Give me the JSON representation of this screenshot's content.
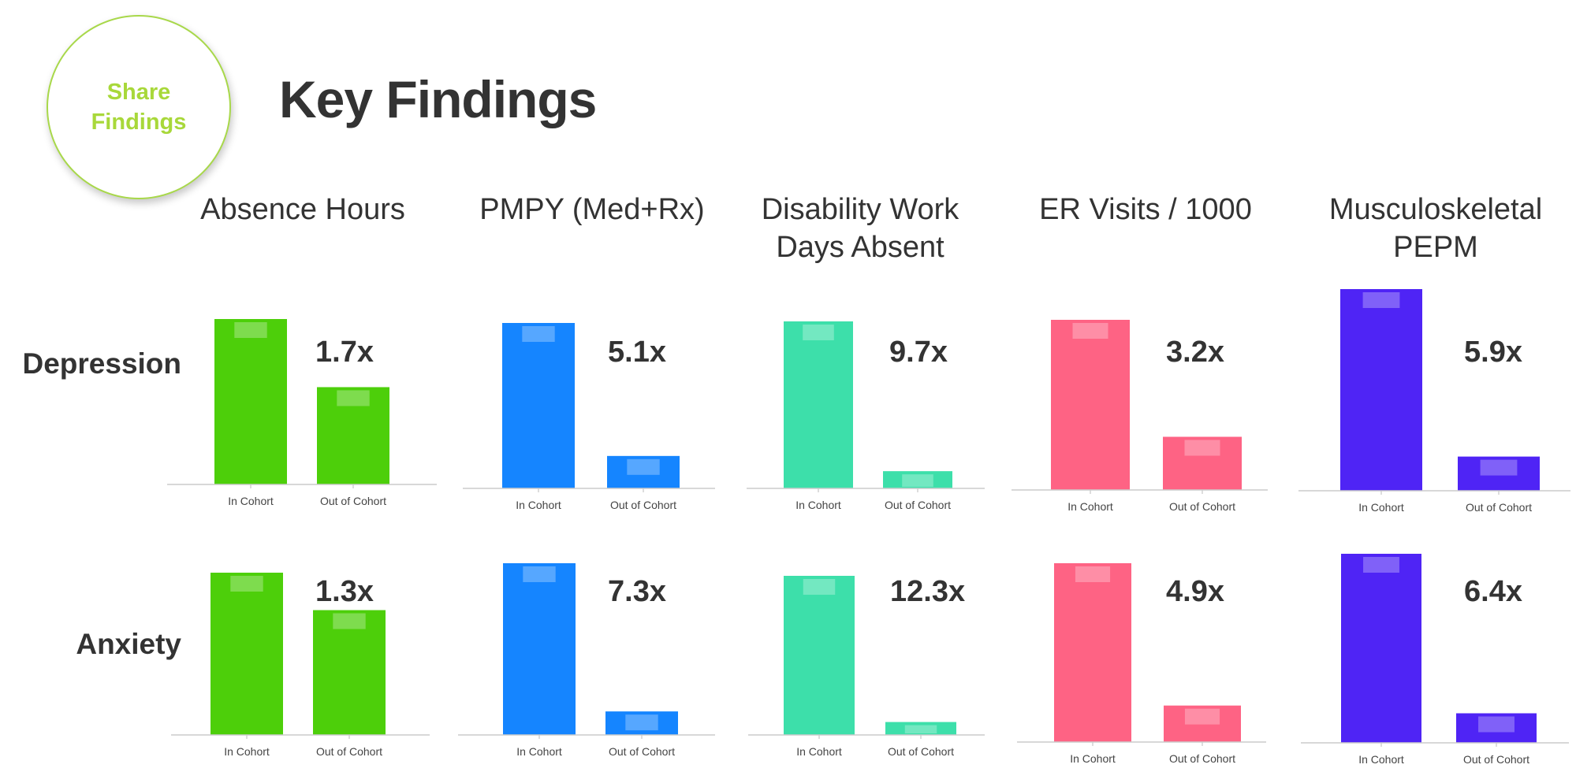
{
  "badge": {
    "text": "Share Findings"
  },
  "title": "Key Findings",
  "columns": [
    {
      "title": "Absence Hours",
      "color": "#4dcf0a"
    },
    {
      "title": "PMPY (Med+Rx)",
      "color": "#1585ff"
    },
    {
      "title": "Disability Work Days Absent",
      "color": "#3ddfaa"
    },
    {
      "title": "ER Visits / 1000",
      "color": "#fe6384"
    },
    {
      "title": "Musculoskeletal PEPM",
      "color": "#4f24f5"
    }
  ],
  "rows": [
    {
      "label": "Depression"
    },
    {
      "label": "Anxiety"
    }
  ],
  "chart_data": [
    {
      "type": "bar",
      "row": "Depression",
      "metric": "Absence Hours",
      "categories": [
        "In Cohort",
        "Out of Cohort"
      ],
      "values": [
        1.7,
        1.0
      ],
      "multiplier": "1.7x"
    },
    {
      "type": "bar",
      "row": "Depression",
      "metric": "PMPY (Med+Rx)",
      "categories": [
        "In Cohort",
        "Out of Cohort"
      ],
      "values": [
        5.1,
        1.0
      ],
      "multiplier": "5.1x"
    },
    {
      "type": "bar",
      "row": "Depression",
      "metric": "Disability Work Days Absent",
      "categories": [
        "In Cohort",
        "Out of Cohort"
      ],
      "values": [
        9.7,
        1.0
      ],
      "multiplier": "9.7x"
    },
    {
      "type": "bar",
      "row": "Depression",
      "metric": "ER Visits / 1000",
      "categories": [
        "In Cohort",
        "Out of Cohort"
      ],
      "values": [
        3.2,
        1.0
      ],
      "multiplier": "3.2x"
    },
    {
      "type": "bar",
      "row": "Depression",
      "metric": "Musculoskeletal PEPM",
      "categories": [
        "In Cohort",
        "Out of Cohort"
      ],
      "values": [
        5.9,
        1.0
      ],
      "multiplier": "5.9x"
    },
    {
      "type": "bar",
      "row": "Anxiety",
      "metric": "Absence Hours",
      "categories": [
        "In Cohort",
        "Out of Cohort"
      ],
      "values": [
        1.3,
        1.0
      ],
      "multiplier": "1.3x"
    },
    {
      "type": "bar",
      "row": "Anxiety",
      "metric": "PMPY (Med+Rx)",
      "categories": [
        "In Cohort",
        "Out of Cohort"
      ],
      "values": [
        7.3,
        1.0
      ],
      "multiplier": "7.3x"
    },
    {
      "type": "bar",
      "row": "Anxiety",
      "metric": "Disability Work Days Absent",
      "categories": [
        "In Cohort",
        "Out of Cohort"
      ],
      "values": [
        12.3,
        1.0
      ],
      "multiplier": "12.3x"
    },
    {
      "type": "bar",
      "row": "Anxiety",
      "metric": "ER Visits / 1000",
      "categories": [
        "In Cohort",
        "Out of Cohort"
      ],
      "values": [
        4.9,
        1.0
      ],
      "multiplier": "4.9x"
    },
    {
      "type": "bar",
      "row": "Anxiety",
      "metric": "Musculoskeletal PEPM",
      "categories": [
        "In Cohort",
        "Out of Cohort"
      ],
      "values": [
        6.4,
        1.0
      ],
      "multiplier": "6.4x"
    }
  ]
}
